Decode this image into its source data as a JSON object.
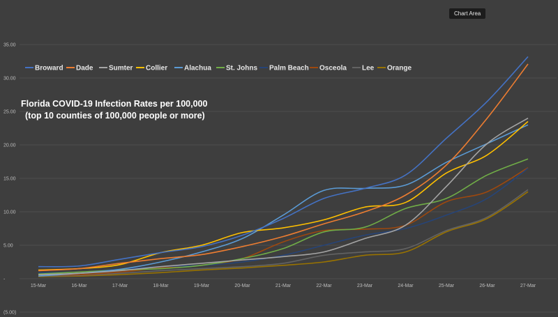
{
  "tooltip": "Chart Area",
  "chart_data": {
    "type": "line",
    "title_lines": [
      "Florida COVID-19 Infection Rates per 100,000",
      "(top 10 counties of 100,000 people or more)"
    ],
    "x": [
      "15-Mar",
      "16-Mar",
      "17-Mar",
      "18-Mar",
      "19-Mar",
      "20-Mar",
      "21-Mar",
      "22-Mar",
      "23-Mar",
      "24-Mar",
      "25-Mar",
      "26-Mar",
      "27-Mar"
    ],
    "y_ticks": [
      "35.00",
      "30.00",
      "25.00",
      "20.00",
      "15.00",
      "10.00",
      "5.00",
      "-",
      "(5.00)"
    ],
    "ylim": [
      -5,
      35
    ],
    "legend_position": "top",
    "grid": true,
    "series": [
      {
        "name": "Broward",
        "color": "#4472c4",
        "values": [
          1.8,
          1.9,
          2.9,
          3.9,
          4.8,
          6.5,
          9.0,
          12.0,
          13.5,
          15.5,
          21.0,
          26.5,
          33.2
        ]
      },
      {
        "name": "Dade",
        "color": "#ed7d31",
        "values": [
          1.2,
          1.5,
          2.3,
          3.0,
          3.6,
          4.8,
          6.3,
          8.2,
          10.0,
          12.5,
          17.0,
          24.0,
          32.1
        ]
      },
      {
        "name": "Sumter",
        "color": "#a5a5a5",
        "values": [
          0.6,
          0.8,
          1.2,
          1.8,
          2.3,
          2.8,
          3.3,
          4.0,
          6.0,
          8.0,
          13.8,
          20.2,
          24.0
        ]
      },
      {
        "name": "Collier",
        "color": "#ffc000",
        "values": [
          1.3,
          1.5,
          2.1,
          3.9,
          5.0,
          6.9,
          7.6,
          8.8,
          10.7,
          11.4,
          15.8,
          18.5,
          23.5
        ]
      },
      {
        "name": "Alachua",
        "color": "#5b9bd5",
        "values": [
          0.4,
          0.8,
          1.4,
          2.5,
          4.0,
          6.0,
          9.5,
          13.2,
          13.5,
          14.0,
          17.4,
          20.2,
          23.0
        ]
      },
      {
        "name": "St. Johns",
        "color": "#70ad47",
        "values": [
          0.7,
          1.0,
          1.3,
          1.5,
          2.0,
          3.0,
          4.5,
          7.0,
          7.7,
          10.5,
          12.0,
          15.5,
          17.9
        ]
      },
      {
        "name": "Palm Beach",
        "color": "#264478",
        "values": [
          0.9,
          1.0,
          1.4,
          1.8,
          2.0,
          2.5,
          3.5,
          5.0,
          6.5,
          7.5,
          9.5,
          12.0,
          16.5
        ]
      },
      {
        "name": "Osceola",
        "color": "#9e480e",
        "values": [
          0.5,
          0.6,
          1.0,
          1.6,
          2.0,
          3.0,
          5.5,
          7.2,
          7.4,
          8.0,
          11.5,
          13.0,
          16.6
        ]
      },
      {
        "name": "Lee",
        "color": "#636363",
        "values": [
          0.4,
          0.5,
          0.8,
          1.2,
          1.5,
          1.8,
          2.3,
          3.5,
          4.0,
          4.5,
          7.2,
          9.2,
          13.3
        ]
      },
      {
        "name": "Orange",
        "color": "#997300",
        "values": [
          0.3,
          0.4,
          0.6,
          0.9,
          1.3,
          1.6,
          2.0,
          2.5,
          3.5,
          4.0,
          7.0,
          9.0,
          13.0
        ]
      }
    ]
  }
}
